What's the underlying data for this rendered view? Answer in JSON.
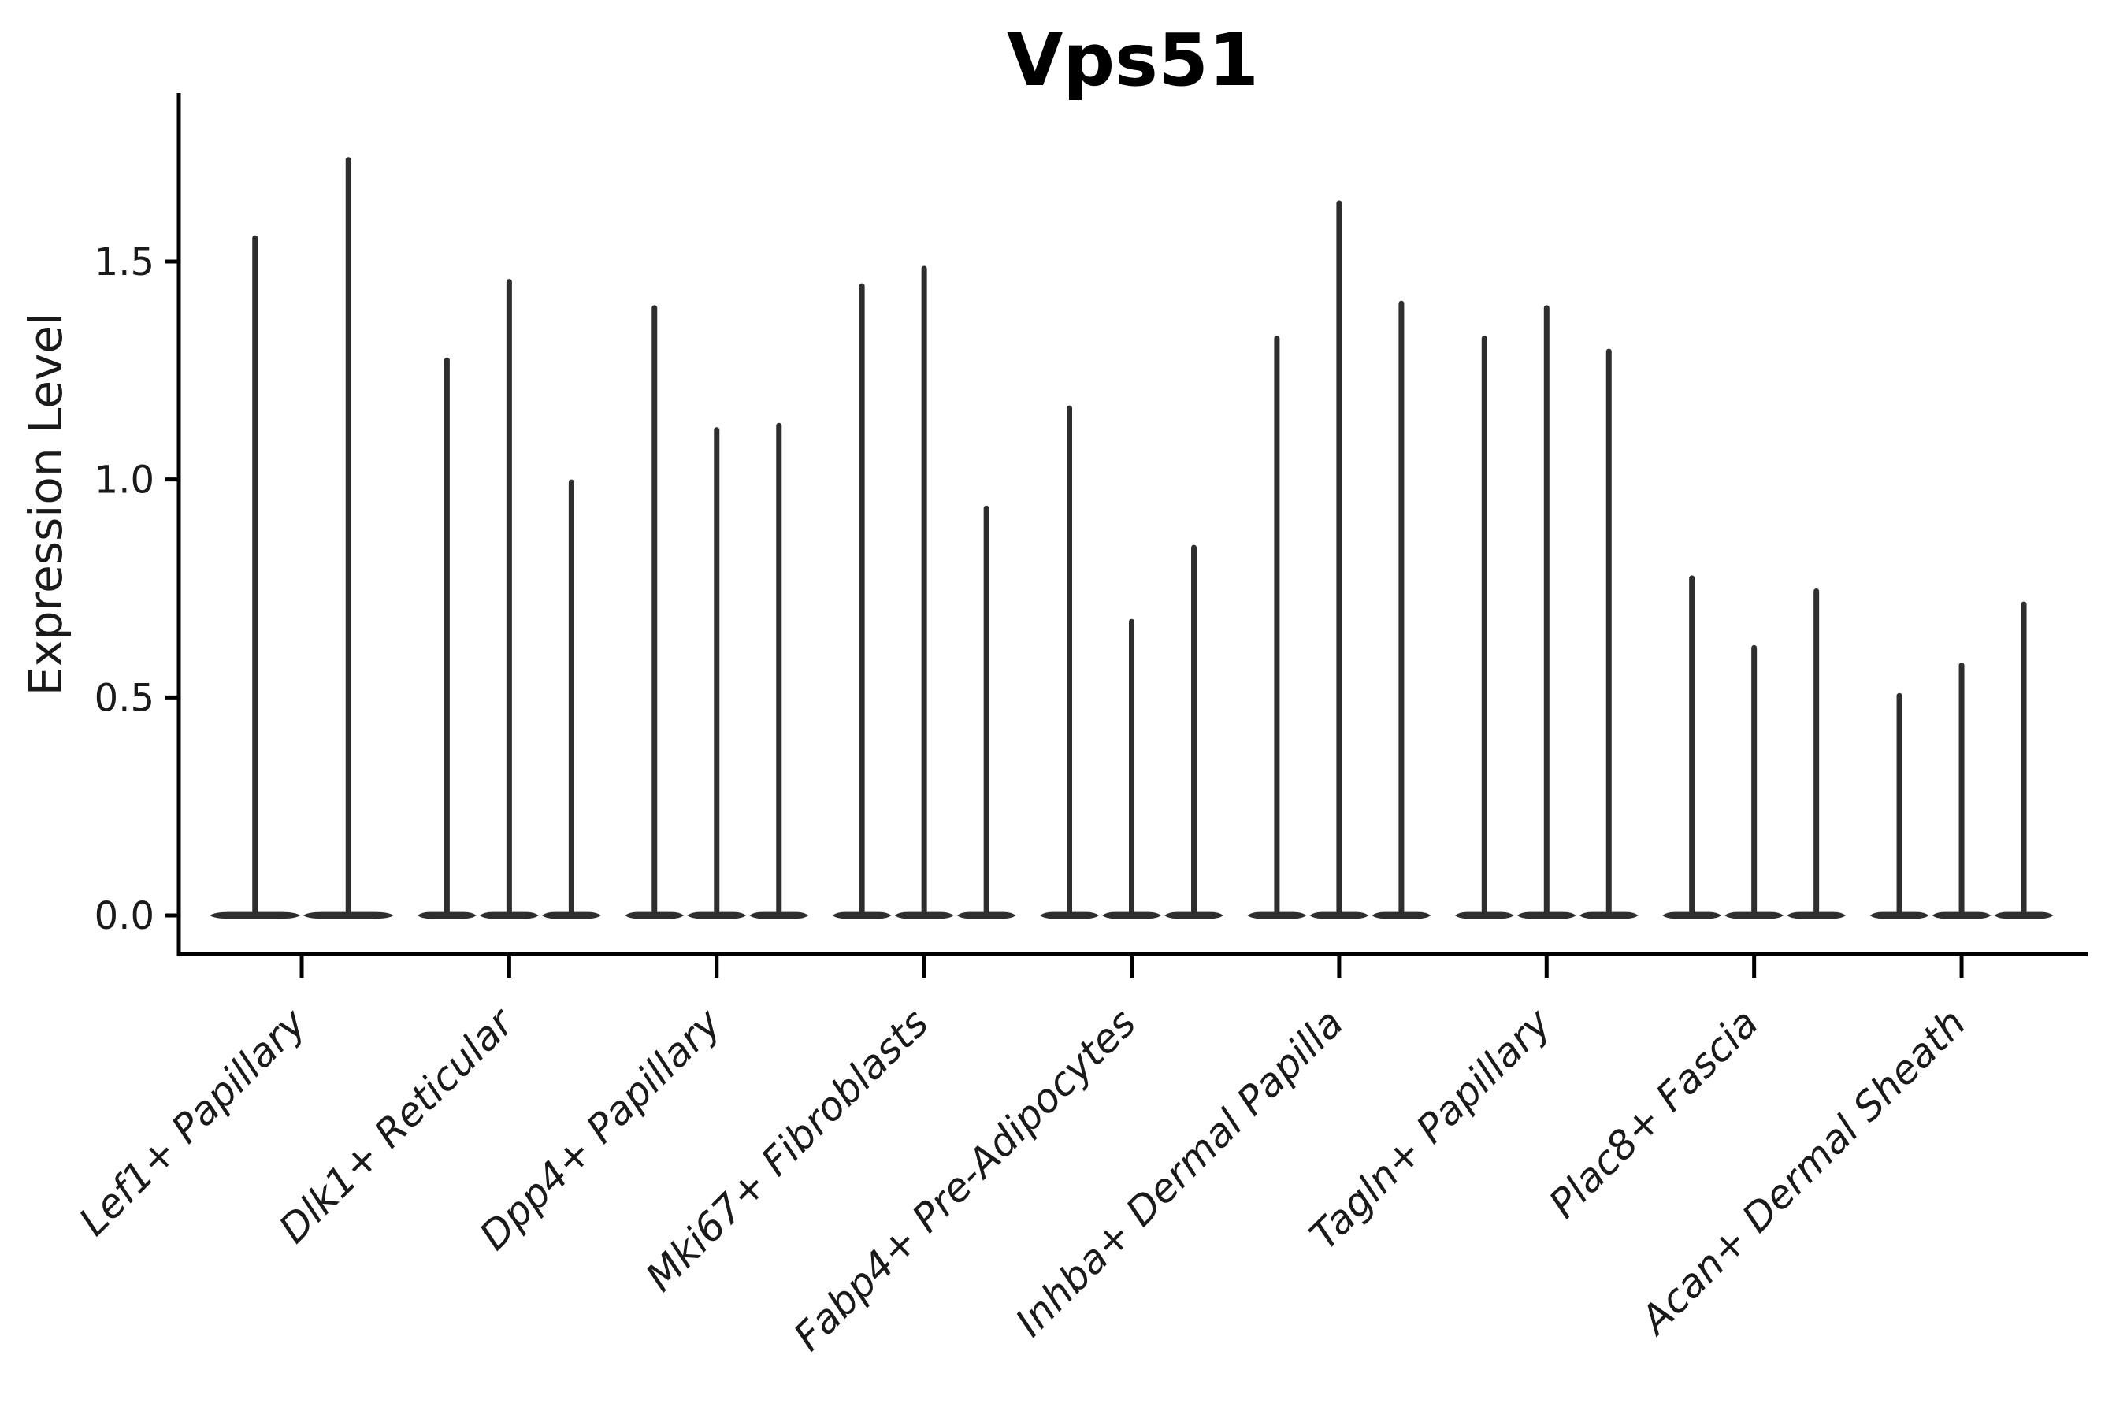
{
  "chart_data": {
    "type": "violin",
    "title": "Vps51",
    "xlabel": "",
    "ylabel": "Expression Level",
    "ylim": [
      0,
      1.89
    ],
    "yticks": [
      0,
      0.5,
      1.0,
      1.5
    ],
    "ytick_labels": [
      "0.0",
      "0.5",
      "1.0",
      "1.5"
    ],
    "grid": false,
    "legend": null,
    "categories": [
      "Lef1+ Papillary",
      "Dlk1+ Reticular",
      "Dpp4+ Papillary",
      "Mki67+ Fibroblasts",
      "Fabp4+ Pre-Adipocytes",
      "Inhba+ Dermal Papilla",
      "Tagln+ Papillary",
      "Plac8+ Fascia",
      "Acan+ Dermal Sheath"
    ],
    "series_note": "Each category holds narrow spike violins: density mass at 0 with a thin spike up to the max expression value",
    "peaks": [
      [
        1.56,
        1.74
      ],
      [
        1.28,
        1.46,
        1.0
      ],
      [
        1.4,
        1.12,
        1.13
      ],
      [
        1.45,
        1.49,
        0.94
      ],
      [
        1.17,
        0.68,
        0.85
      ],
      [
        1.33,
        1.64,
        1.41
      ],
      [
        1.33,
        1.4,
        1.3
      ],
      [
        0.78,
        0.62,
        0.75
      ],
      [
        0.51,
        0.58,
        0.72
      ]
    ]
  },
  "style": {
    "ink": "#1a1a1a",
    "axis_color": "#000000",
    "violin_fill": "#2e2e2e",
    "background": "#ffffff"
  }
}
